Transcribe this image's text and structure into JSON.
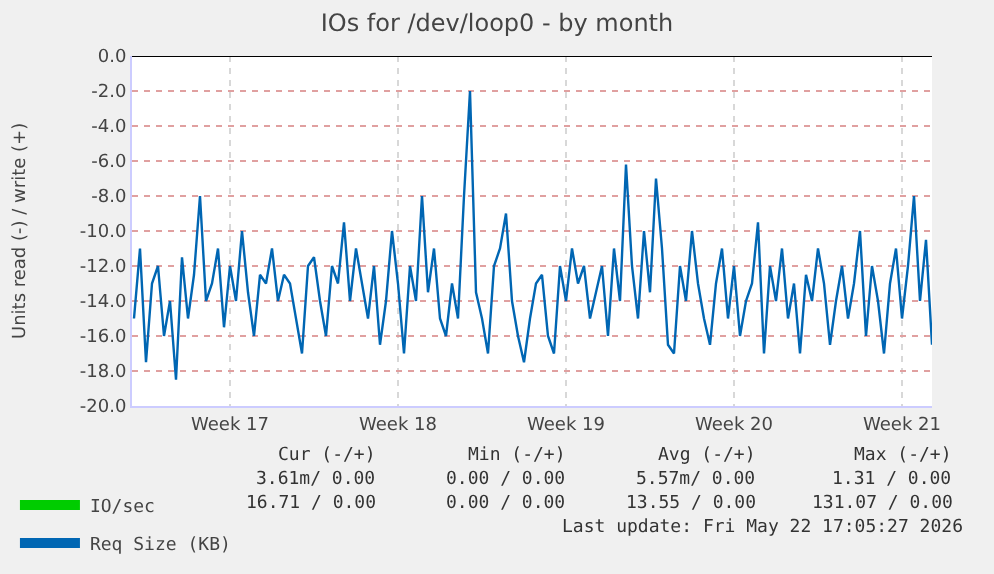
{
  "chart_data": {
    "type": "line",
    "title": "IOs for /dev/loop0 - by month",
    "ylabel": "Units read (-) / write (+)",
    "xlim": [
      "2026-04-19T10:00",
      "2026-05-22T18:00"
    ],
    "ylim": [
      -20,
      0
    ],
    "xticks": [
      {
        "value": "2026-04-23T12:00",
        "label": "Week 17"
      },
      {
        "value": "2026-04-30T12:00",
        "label": "Week 18"
      },
      {
        "value": "2026-05-07T12:00",
        "label": "Week 19"
      },
      {
        "value": "2026-05-14T12:00",
        "label": "Week 20"
      },
      {
        "value": "2026-05-21T12:00",
        "label": "Week 21"
      }
    ],
    "yticks": [
      {
        "value": 0,
        "label": "0.0"
      },
      {
        "value": -2,
        "label": "-2.0"
      },
      {
        "value": -4,
        "label": "-4.0"
      },
      {
        "value": -6,
        "label": "-6.0"
      },
      {
        "value": -8,
        "label": "-8.0"
      },
      {
        "value": -10,
        "label": "-10.0"
      },
      {
        "value": -12,
        "label": "-12.0"
      },
      {
        "value": -14,
        "label": "-14.0"
      },
      {
        "value": -16,
        "label": "-16.0"
      },
      {
        "value": -18,
        "label": "-18.0"
      },
      {
        "value": -20,
        "label": "-20.0"
      }
    ],
    "grid": true,
    "legend": "bottom left",
    "marker": "none",
    "line_style": "solid",
    "ref_lines": [
      {
        "axis": "y",
        "value": 0,
        "color": "#000000"
      }
    ],
    "series": [
      {
        "name": "IO/sec",
        "color": "#00cc00",
        "values": [
          null
        ]
      },
      {
        "name": "Req Size (KB)",
        "color": "#0066b3",
        "x": [
          "2026-04-19T12:00",
          "2026-04-19T18:00",
          "2026-04-20T00:00",
          "2026-04-20T06:00",
          "2026-04-20T12:00",
          "2026-04-20T18:00",
          "2026-04-21T00:00",
          "2026-04-21T06:00",
          "2026-04-21T12:00",
          "2026-04-21T18:00",
          "2026-04-22T00:00",
          "2026-04-22T06:00",
          "2026-04-22T12:00",
          "2026-04-22T18:00",
          "2026-04-23T00:00",
          "2026-04-23T06:00",
          "2026-04-23T12:00",
          "2026-04-23T18:00",
          "2026-04-24T00:00",
          "2026-04-24T06:00",
          "2026-04-24T12:00",
          "2026-04-24T18:00",
          "2026-04-25T00:00",
          "2026-04-25T06:00",
          "2026-04-25T12:00",
          "2026-04-25T18:00",
          "2026-04-26T00:00",
          "2026-04-26T06:00",
          "2026-04-26T12:00",
          "2026-04-26T18:00",
          "2026-04-27T00:00",
          "2026-04-27T06:00",
          "2026-04-27T12:00",
          "2026-04-27T18:00",
          "2026-04-28T00:00",
          "2026-04-28T06:00",
          "2026-04-28T12:00",
          "2026-04-28T18:00",
          "2026-04-29T00:00",
          "2026-04-29T06:00",
          "2026-04-29T12:00",
          "2026-04-29T18:00",
          "2026-04-30T00:00",
          "2026-04-30T06:00",
          "2026-04-30T12:00",
          "2026-04-30T18:00",
          "2026-05-01T00:00",
          "2026-05-01T06:00",
          "2026-05-01T12:00",
          "2026-05-01T18:00",
          "2026-05-02T00:00",
          "2026-05-02T06:00",
          "2026-05-02T12:00",
          "2026-05-02T18:00",
          "2026-05-03T00:00",
          "2026-05-03T06:00",
          "2026-05-03T12:00",
          "2026-05-03T18:00",
          "2026-05-04T00:00",
          "2026-05-04T06:00",
          "2026-05-04T12:00",
          "2026-05-04T18:00",
          "2026-05-05T00:00",
          "2026-05-05T06:00",
          "2026-05-05T12:00",
          "2026-05-05T18:00",
          "2026-05-06T00:00",
          "2026-05-06T06:00",
          "2026-05-06T12:00",
          "2026-05-06T18:00",
          "2026-05-07T00:00",
          "2026-05-07T06:00",
          "2026-05-07T12:00",
          "2026-05-07T18:00",
          "2026-05-08T00:00",
          "2026-05-08T06:00",
          "2026-05-08T12:00",
          "2026-05-08T18:00",
          "2026-05-09T00:00",
          "2026-05-09T06:00",
          "2026-05-09T12:00",
          "2026-05-09T18:00",
          "2026-05-10T00:00",
          "2026-05-10T06:00",
          "2026-05-10T12:00",
          "2026-05-10T18:00",
          "2026-05-11T00:00",
          "2026-05-11T06:00",
          "2026-05-11T12:00",
          "2026-05-11T18:00",
          "2026-05-12T00:00",
          "2026-05-12T06:00",
          "2026-05-12T12:00",
          "2026-05-12T18:00",
          "2026-05-13T00:00",
          "2026-05-13T06:00",
          "2026-05-13T12:00",
          "2026-05-13T18:00",
          "2026-05-14T00:00",
          "2026-05-14T06:00",
          "2026-05-14T12:00",
          "2026-05-14T18:00",
          "2026-05-15T00:00",
          "2026-05-15T06:00",
          "2026-05-15T12:00",
          "2026-05-15T18:00",
          "2026-05-16T00:00",
          "2026-05-16T06:00",
          "2026-05-16T12:00",
          "2026-05-16T18:00",
          "2026-05-17T00:00",
          "2026-05-17T06:00",
          "2026-05-17T12:00",
          "2026-05-17T18:00",
          "2026-05-18T00:00",
          "2026-05-18T06:00",
          "2026-05-18T12:00",
          "2026-05-18T18:00",
          "2026-05-19T00:00",
          "2026-05-19T06:00",
          "2026-05-19T12:00",
          "2026-05-19T18:00",
          "2026-05-20T00:00",
          "2026-05-20T06:00",
          "2026-05-20T12:00",
          "2026-05-20T18:00",
          "2026-05-21T00:00",
          "2026-05-21T06:00",
          "2026-05-21T12:00",
          "2026-05-21T18:00",
          "2026-05-22T00:00",
          "2026-05-22T06:00",
          "2026-05-22T12:00",
          "2026-05-22T18:00"
        ],
        "values": [
          -15,
          -11,
          -17.5,
          -13,
          -12,
          -16,
          -14,
          -18.5,
          -11.5,
          -15,
          -12.5,
          -8,
          -14,
          -13,
          -11,
          -15.5,
          -12,
          -14,
          -10,
          -13.5,
          -16,
          -12.5,
          -13,
          -11,
          -14,
          -12.5,
          -13,
          -15,
          -17,
          -12,
          -11.5,
          -14,
          -16,
          -12,
          -13,
          -9.5,
          -14,
          -11,
          -13,
          -15,
          -12,
          -16.5,
          -14,
          -10,
          -13,
          -17,
          -12,
          -14,
          -8,
          -13.5,
          -11,
          -15,
          -16,
          -13,
          -15,
          -8,
          -2,
          -13.5,
          -15,
          -17,
          -12,
          -11,
          -9,
          -14,
          -16,
          -17.5,
          -15,
          -13,
          -12.5,
          -16,
          -17,
          -12,
          -14,
          -11,
          -13,
          -12,
          -15,
          -13.5,
          -12,
          -16,
          -11,
          -14,
          -6.2,
          -12,
          -15,
          -10,
          -13.5,
          -7,
          -11,
          -16.5,
          -17,
          -12,
          -14,
          -10,
          -13,
          -15,
          -16.5,
          -13,
          -11,
          -15,
          -12,
          -16,
          -14,
          -13,
          -9.5,
          -17,
          -12,
          -14,
          -11,
          -15,
          -13,
          -17,
          -12.5,
          -14,
          -11,
          -13,
          -16.5,
          -14,
          -12,
          -15,
          -13,
          -10,
          -16,
          -12,
          -14,
          -17,
          -13,
          -11,
          -15,
          -12,
          -8,
          -14,
          -10.5,
          -16.5
        ]
      }
    ],
    "annotations": [
      "Cur (-/+)",
      "Min (-/+)",
      "Avg (-/+)",
      "Max (-/+)",
      "3.61m/ 0.00",
      "0.00 / 0.00",
      "5.57m/ 0.00",
      "1.31 / 0.00",
      "16.71 / 0.00",
      "0.00 / 0.00",
      "13.55 / 0.00",
      "131.07 / 0.00",
      "Last update: Fri May 22 17:05:27 2026"
    ]
  }
}
